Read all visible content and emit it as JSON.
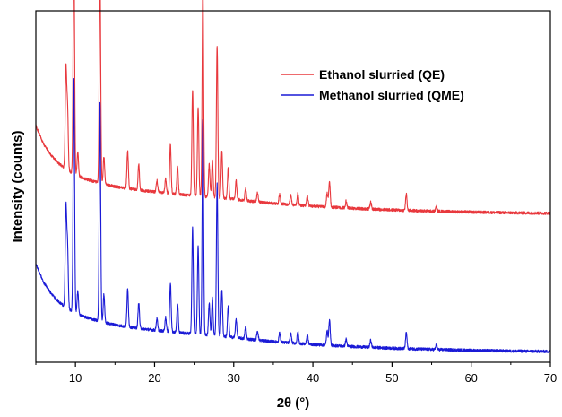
{
  "chart_data": {
    "type": "line",
    "title": "",
    "xlabel": "2θ (°)",
    "ylabel": "Intensity (counts)",
    "xlim": [
      5,
      70
    ],
    "x_ticks": [
      10,
      20,
      30,
      40,
      50,
      60,
      70
    ],
    "y_ticks_labeled": false,
    "grid": false,
    "legend_position": "top-right",
    "baseline": {
      "x": [
        5,
        6,
        7,
        8,
        9,
        10,
        11,
        12,
        13,
        14,
        15,
        16,
        18,
        20,
        22,
        24,
        26,
        28,
        30,
        32,
        35,
        40,
        45,
        50,
        55,
        60,
        65,
        70
      ],
      "y": [
        0.64,
        0.56,
        0.51,
        0.475,
        0.45,
        0.43,
        0.415,
        0.405,
        0.395,
        0.387,
        0.38,
        0.374,
        0.365,
        0.357,
        0.35,
        0.344,
        0.338,
        0.332,
        0.326,
        0.318,
        0.308,
        0.296,
        0.287,
        0.28,
        0.275,
        0.271,
        0.268,
        0.266
      ]
    },
    "peaks": [
      {
        "x": 8.8,
        "h": 0.42
      },
      {
        "x": 9.0,
        "h": 0.26
      },
      {
        "x": 9.8,
        "h": 1.0
      },
      {
        "x": 10.3,
        "h": 0.1
      },
      {
        "x": 13.1,
        "h": 0.93
      },
      {
        "x": 13.6,
        "h": 0.12
      },
      {
        "x": 16.6,
        "h": 0.16
      },
      {
        "x": 18.0,
        "h": 0.11
      },
      {
        "x": 20.3,
        "h": 0.05
      },
      {
        "x": 21.4,
        "h": 0.06
      },
      {
        "x": 22.0,
        "h": 0.21
      },
      {
        "x": 22.9,
        "h": 0.12
      },
      {
        "x": 24.8,
        "h": 0.45
      },
      {
        "x": 25.5,
        "h": 0.38
      },
      {
        "x": 26.1,
        "h": 0.92
      },
      {
        "x": 26.9,
        "h": 0.14
      },
      {
        "x": 27.3,
        "h": 0.16
      },
      {
        "x": 27.9,
        "h": 0.65
      },
      {
        "x": 28.5,
        "h": 0.2
      },
      {
        "x": 29.3,
        "h": 0.13
      },
      {
        "x": 30.3,
        "h": 0.08
      },
      {
        "x": 31.5,
        "h": 0.05
      },
      {
        "x": 33.0,
        "h": 0.04
      },
      {
        "x": 35.8,
        "h": 0.04
      },
      {
        "x": 37.2,
        "h": 0.04
      },
      {
        "x": 38.1,
        "h": 0.05
      },
      {
        "x": 39.3,
        "h": 0.04
      },
      {
        "x": 41.8,
        "h": 0.06
      },
      {
        "x": 42.1,
        "h": 0.11
      },
      {
        "x": 44.2,
        "h": 0.03
      },
      {
        "x": 47.3,
        "h": 0.03
      },
      {
        "x": 51.8,
        "h": 0.07
      },
      {
        "x": 55.6,
        "h": 0.02
      }
    ],
    "series": [
      {
        "name": "Ethanol slurried (QE)",
        "color": "#e8383d",
        "offset": 0.59
      },
      {
        "name": "Methanol slurried (QME)",
        "color": "#1a1ad6",
        "offset": 0.0
      }
    ]
  }
}
